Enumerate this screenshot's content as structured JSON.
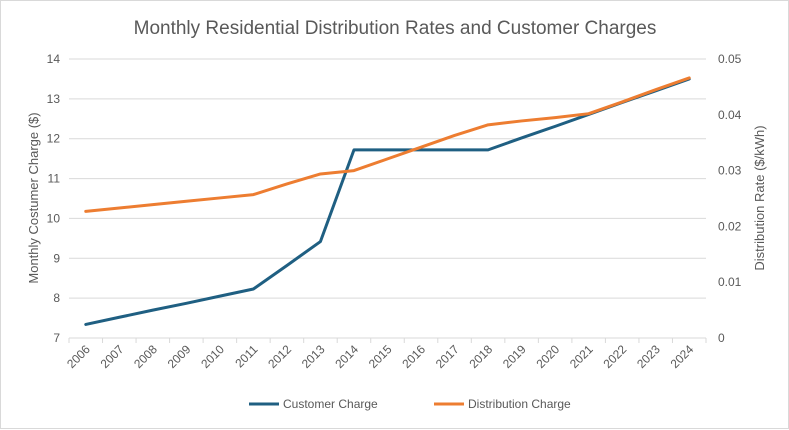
{
  "chart_data": {
    "type": "line",
    "title": "Monthly Residential Distribution Rates and Customer Charges",
    "categories": [
      "2006",
      "2007",
      "2008",
      "2009",
      "2010",
      "2011",
      "2012",
      "2013",
      "2014",
      "2015",
      "2016",
      "2017",
      "2018",
      "2019",
      "2020",
      "2021",
      "2022",
      "2023",
      "2024"
    ],
    "ylabel_left": "Monthly Costumer Charge ($)",
    "ylabel_right": "Distribution Rate ($/kWh)",
    "ylim_left": [
      7,
      14
    ],
    "yticks_left": [
      "7",
      "8",
      "9",
      "10",
      "11",
      "12",
      "13",
      "14"
    ],
    "ylim_right": [
      0,
      0.05
    ],
    "yticks_right": [
      "0",
      "0.01",
      "0.02",
      "0.03",
      "0.04",
      "0.05"
    ],
    "grid": true,
    "legend": "bottom",
    "series": [
      {
        "name": "Customer Charge",
        "axis": "left",
        "color": "#1f5f82",
        "values": [
          7.34,
          7.52,
          7.7,
          7.87,
          8.05,
          8.23,
          8.82,
          9.42,
          11.72,
          11.72,
          11.72,
          11.72,
          11.72,
          12.02,
          12.31,
          12.61,
          12.91,
          13.2,
          13.5
        ]
      },
      {
        "name": "Distribution Charge",
        "axis": "right",
        "color": "#ed7d31",
        "values": [
          0.0227,
          0.0233,
          0.0239,
          0.0245,
          0.0251,
          0.0257,
          0.0276,
          0.0294,
          0.03,
          0.0321,
          0.0342,
          0.0363,
          0.0382,
          0.0389,
          0.0395,
          0.0402,
          0.0423,
          0.0445,
          0.0466
        ]
      }
    ]
  }
}
